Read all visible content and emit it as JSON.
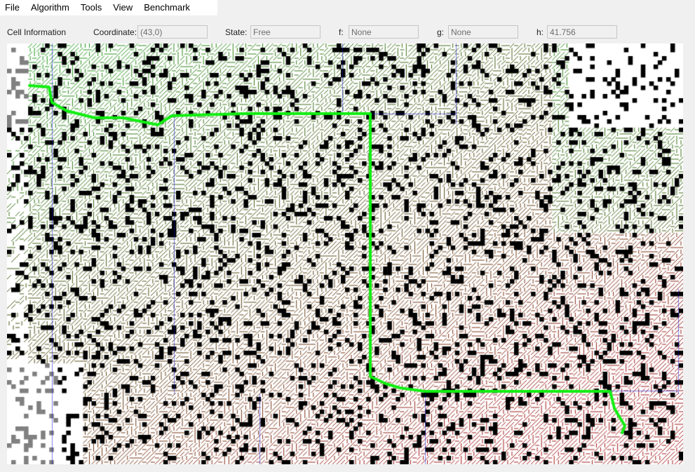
{
  "menu": {
    "items": [
      "File",
      "Algorithm",
      "Tools",
      "View",
      "Benchmark"
    ]
  },
  "cell_info": {
    "title": "Cell Information",
    "coordinate_label": "Coordinate:",
    "coordinate_value": "(43,0)",
    "state_label": "State:",
    "state_value": "Free",
    "f_label": "f:",
    "f_value": "None",
    "g_label": "g:",
    "g_value": "None",
    "h_label": "h:",
    "h_value": "41.756"
  },
  "grid": {
    "columns": 160,
    "rows": 100,
    "colors": {
      "obstacle": "#000000",
      "unknown_obstacle": "#808080",
      "free": "#ffffff",
      "expanded_low_cost": "#22dd22",
      "expanded_high_cost": "#dd2222",
      "path": "#11ee11",
      "subgoal_lines": "#0000cc"
    }
  }
}
